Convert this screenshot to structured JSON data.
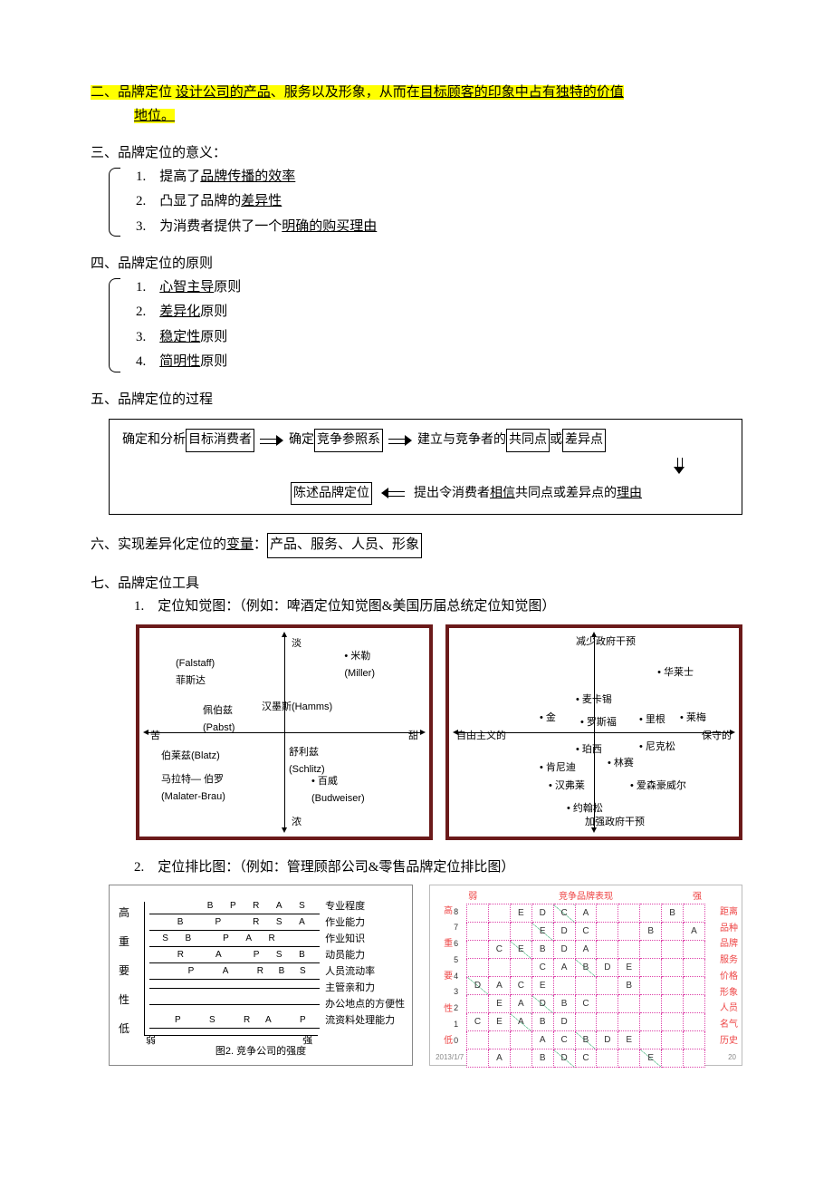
{
  "sec2": {
    "prefix": "二、品牌定位 ",
    "t1": "设计公司的产品",
    "t2": "、服务以及形象，从而在",
    "t3": "目标顾客的印象中占有独特的价值",
    "t4": "地位。"
  },
  "sec3": {
    "title": "三、品牌定位的意义：",
    "i1a": "1.　提高了",
    "i1b": "品牌传播的效率",
    "i2a": "2.　凸显了品牌的",
    "i2b": "差异性",
    "i3a": "3.　为消费者提供了一个",
    "i3b": "明确的购买理由"
  },
  "sec4": {
    "title": "四、品牌定位的原则",
    "i1a": "1.　",
    "i1b": "心智主导",
    "i1c": "原则",
    "i2a": "2.　",
    "i2b": "差异化",
    "i2c": "原则",
    "i3a": "3.　",
    "i3b": "稳定性",
    "i3c": "原则",
    "i4a": "4.　",
    "i4b": "简明性",
    "i4c": "原则"
  },
  "sec5": {
    "title": "五、品牌定位的过程",
    "s1a": "确定和分析",
    "s1b": "目标消费者",
    "s2a": "确定",
    "s2b": "竞争参照系",
    "s3a": "建立与竞争者的",
    "s3b": "共同点",
    "s3c": "或",
    "s3d": "差异点",
    "s4a": "陈述品牌定位",
    "s5a": "提出令消费者",
    "s5b": "相信",
    "s5c": "共同点或差异点的",
    "s5d": "理由"
  },
  "sec6": {
    "a": "六、实现差异化定位的",
    "b": "变量",
    "c": "：",
    "d": "产品、服务、人员、形象"
  },
  "sec7": {
    "title": "七、品牌定位工具",
    "i1": "1.　定位知觉图：（例如：啤酒定位知觉图&美国历届总统定位知觉图）",
    "i2": "2.　定位排比图：（例如：管理顾部公司&零售品牌定位排比图）"
  },
  "beerMap": {
    "top": "淡",
    "bottom": "浓",
    "left": "苦",
    "right": "甜",
    "p1": "(Falstaff)",
    "p1b": "菲斯达",
    "p2": "• 米勒",
    "p2b": "(Miller)",
    "p3": "佩伯兹",
    "p3b": "(Pabst)",
    "p4": "汉墨斯(Hamms)",
    "p5": "伯莱兹(Blatz)",
    "p6": "舒利兹",
    "p6b": "(Schlitz)",
    "p7": "马拉特— 伯罗",
    "p7b": "(Malater-Brau)",
    "p8": "• 百威",
    "p8b": "(Budweiser)"
  },
  "presMap": {
    "top": "减少政府干预",
    "bottom": "加强政府干预",
    "left": "自由主义的",
    "right": "保守的",
    "n1": "华莱士",
    "n2": "麦卡锡",
    "n3": "金",
    "n4": "罗斯福",
    "n5": "里根",
    "n6": "莱梅",
    "n7": "珀西",
    "n8": "尼克松",
    "n9": "肯尼迪",
    "n10": "林赛",
    "n11": "汉弗莱",
    "n12": "爱森豪威尔",
    "n13": "约翰松"
  },
  "rankChart": {
    "y1": "高",
    "y2": "重",
    "y3": "要",
    "y4": "性",
    "y5": "低",
    "x1": "弱",
    "x2": "强",
    "caption": "图2. 竞争公司的强度",
    "rows": [
      {
        "letters": [
          "",
          "",
          "",
          "B",
          "P",
          "R",
          "A",
          "S"
        ],
        "label": "专业程度"
      },
      {
        "letters": [
          "",
          "B",
          "",
          "P",
          "",
          "R",
          "S",
          "A"
        ],
        "label": "作业能力"
      },
      {
        "letters": [
          "S",
          "B",
          "",
          "P",
          "A",
          "R",
          "",
          ""
        ],
        "label": "作业知识"
      },
      {
        "letters": [
          "",
          "R",
          "",
          "A",
          "",
          "P",
          "S",
          "B"
        ],
        "label": "动员能力"
      },
      {
        "letters": [
          "",
          "",
          "P",
          "",
          "A",
          "",
          "R",
          "B",
          "S"
        ],
        "label": "人员流动率"
      },
      {
        "letters": [
          "",
          "",
          "",
          "",
          "",
          "",
          "",
          ""
        ],
        "label": "主管亲和力"
      },
      {
        "letters": [
          "",
          "",
          "",
          "",
          "",
          "",
          "",
          ""
        ],
        "label": "办公地点的方便性"
      },
      {
        "letters": [
          "",
          "P",
          "",
          "S",
          "",
          "R",
          "A",
          "",
          "P"
        ],
        "label": "流资料处理能力"
      }
    ]
  },
  "gridChart": {
    "topLeft": "弱",
    "topCenter": "竞争品牌表现",
    "topRight": "强",
    "yTop": "高",
    "yMid1": "重",
    "yMid2": "要",
    "yMid3": "性",
    "yBottom": "低",
    "yNums": [
      "8",
      "7",
      "6",
      "5",
      "4",
      "3",
      "2",
      "1",
      "0"
    ],
    "rLabels": [
      "距离",
      "品种",
      "品牌",
      "服务",
      "价格",
      "形象",
      "人员",
      "名气",
      "历史"
    ],
    "footerLeft": "2013/1/7",
    "footerRight": "20",
    "rows": [
      [
        "",
        "",
        "E",
        "D",
        "C",
        "A",
        "",
        "",
        "",
        "B",
        ""
      ],
      [
        "",
        "",
        "",
        "E",
        "D",
        "C",
        "",
        "",
        "B",
        "",
        "A"
      ],
      [
        "",
        "C",
        "E",
        "B",
        "D",
        "A",
        "",
        "",
        "",
        "",
        ""
      ],
      [
        "",
        "",
        "",
        "C",
        "A",
        "B",
        "D",
        "E",
        "",
        "",
        ""
      ],
      [
        "D",
        "A",
        "C",
        "E",
        "",
        "",
        "",
        "B",
        "",
        "",
        ""
      ],
      [
        "",
        "E",
        "A",
        "D",
        "B",
        "C",
        "",
        "",
        "",
        "",
        ""
      ],
      [
        "C",
        "E",
        "A",
        "B",
        "D",
        "",
        "",
        "",
        "",
        "",
        ""
      ],
      [
        "",
        "",
        "",
        "A",
        "C",
        "B",
        "D",
        "E",
        "",
        "",
        ""
      ],
      [
        "",
        "A",
        "",
        "B",
        "D",
        "C",
        "",
        "",
        "E",
        "",
        ""
      ]
    ]
  }
}
